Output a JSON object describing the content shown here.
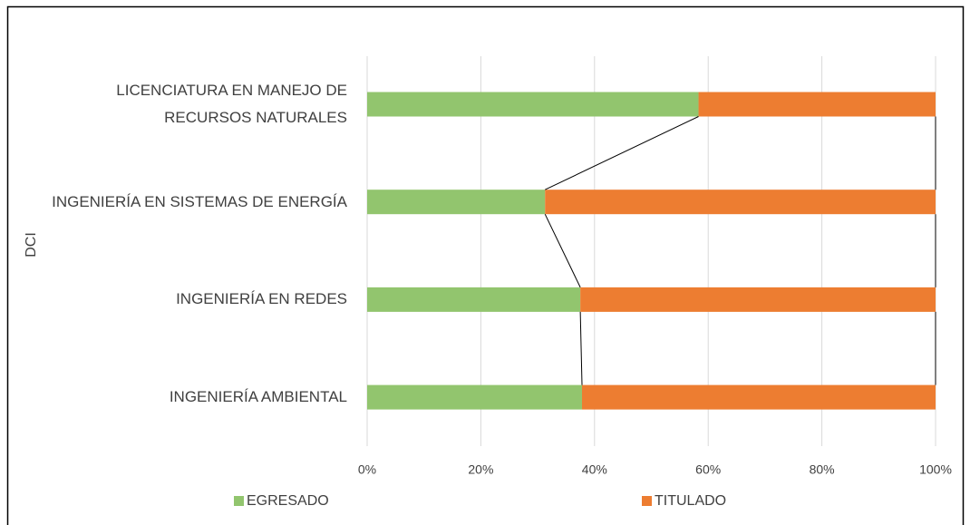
{
  "chart_data": {
    "type": "bar",
    "orientation": "horizontal",
    "stacked": "percent",
    "ylabel": "DCI",
    "categories": [
      "LICENCIATURA EN MANEJO DE RECURSOS NATURALES",
      "INGENIERÍA EN SISTEMAS DE ENERGÍA",
      "INGENIERÍA EN REDES",
      "INGENIERÍA AMBIENTAL"
    ],
    "series": [
      {
        "name": "EGRESADO",
        "color": "#92c56e",
        "values": [
          58.3,
          31.3,
          37.5,
          37.8
        ]
      },
      {
        "name": "TITULADO",
        "color": "#ed7d31",
        "values": [
          41.7,
          68.7,
          62.5,
          62.2
        ]
      }
    ],
    "xlim": [
      0,
      100
    ],
    "xticks": [
      {
        "value": 0,
        "label": "0%"
      },
      {
        "value": 20,
        "label": "20%"
      },
      {
        "value": 40,
        "label": "40%"
      },
      {
        "value": 60,
        "label": "60%"
      },
      {
        "value": 80,
        "label": "80%"
      },
      {
        "value": 100,
        "label": "100%"
      }
    ],
    "grid": true,
    "series_lines": true,
    "legend": "bottom"
  }
}
